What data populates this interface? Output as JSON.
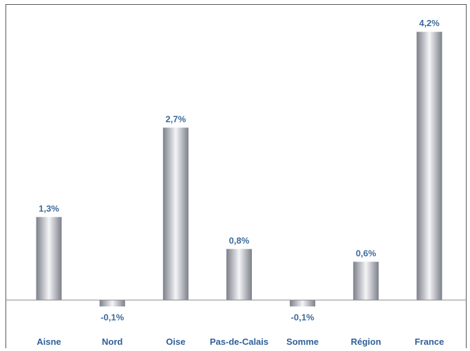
{
  "chart_data": {
    "type": "bar",
    "categories": [
      "Aisne",
      "Nord",
      "Oise",
      "Pas-de-Calais",
      "Somme",
      "Région",
      "France"
    ],
    "values": [
      1.3,
      -0.1,
      2.7,
      0.8,
      -0.1,
      0.6,
      4.2
    ],
    "value_labels": [
      "1,3%",
      "-0,1%",
      "2,7%",
      "0,8%",
      "-0,1%",
      "0,6%",
      "4,2%"
    ],
    "ylim": [
      -0.2,
      4.2
    ],
    "grid": false,
    "legend": "none",
    "colors": {
      "bar_edge": "#7c808a",
      "bar_mid": "#f4f5f7",
      "value_text": "#3e6a9b",
      "category_text": "#2f5f9a",
      "axis": "#888888"
    }
  }
}
